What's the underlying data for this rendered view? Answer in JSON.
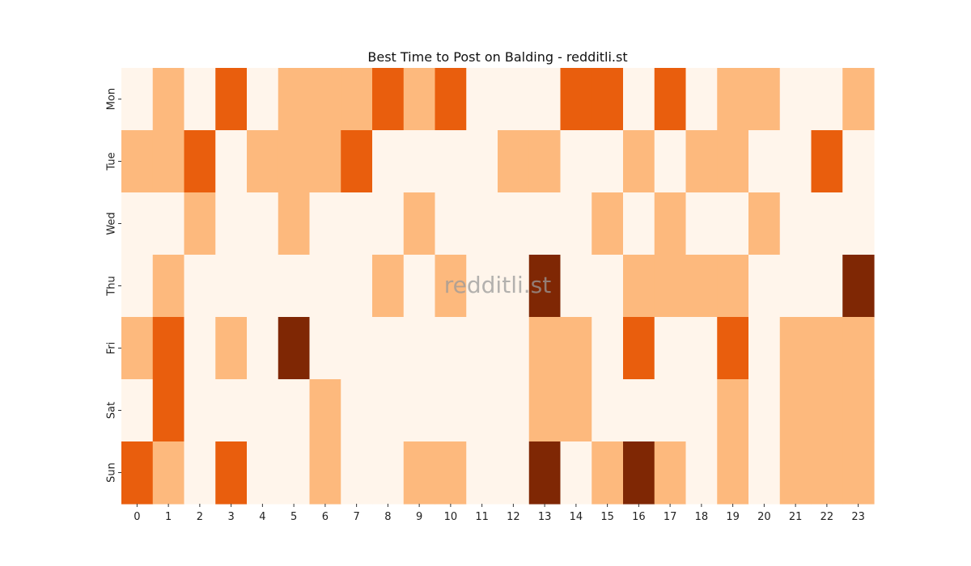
{
  "chart_data": {
    "type": "heatmap",
    "title": "Best Time to Post on Balding - redditli.st",
    "watermark": "redditli.st",
    "xlabel": "",
    "ylabel": "",
    "x_categories": [
      "0",
      "1",
      "2",
      "3",
      "4",
      "5",
      "6",
      "7",
      "8",
      "9",
      "10",
      "11",
      "12",
      "13",
      "14",
      "15",
      "16",
      "17",
      "18",
      "19",
      "20",
      "21",
      "22",
      "23"
    ],
    "y_categories": [
      "Mon",
      "Tue",
      "Wed",
      "Thu",
      "Fri",
      "Sat",
      "Sun"
    ],
    "levels": [
      [
        0,
        1,
        0,
        2,
        0,
        1,
        1,
        1,
        2,
        1,
        2,
        0,
        0,
        0,
        2,
        2,
        0,
        2,
        0,
        1,
        1,
        0,
        0,
        1
      ],
      [
        1,
        1,
        2,
        0,
        1,
        1,
        1,
        2,
        0,
        0,
        0,
        0,
        1,
        1,
        0,
        0,
        1,
        0,
        1,
        1,
        0,
        0,
        2,
        0
      ],
      [
        0,
        0,
        1,
        0,
        0,
        1,
        0,
        0,
        0,
        1,
        0,
        0,
        0,
        0,
        0,
        1,
        0,
        1,
        0,
        0,
        1,
        0,
        0,
        0
      ],
      [
        0,
        1,
        0,
        0,
        0,
        0,
        0,
        0,
        1,
        0,
        1,
        0,
        0,
        3,
        0,
        0,
        1,
        1,
        1,
        1,
        0,
        0,
        0,
        3
      ],
      [
        1,
        2,
        0,
        1,
        0,
        3,
        0,
        0,
        0,
        0,
        0,
        0,
        0,
        1,
        1,
        0,
        2,
        0,
        0,
        2,
        0,
        1,
        1,
        1
      ],
      [
        0,
        2,
        0,
        0,
        0,
        0,
        1,
        0,
        0,
        0,
        0,
        0,
        0,
        1,
        1,
        0,
        0,
        0,
        0,
        1,
        0,
        1,
        1,
        1
      ],
      [
        2,
        1,
        0,
        2,
        0,
        0,
        1,
        0,
        0,
        1,
        1,
        0,
        0,
        3,
        0,
        1,
        3,
        1,
        0,
        1,
        0,
        1,
        1,
        1
      ]
    ],
    "colors": [
      "#fff5eb",
      "#fdb97d",
      "#e95e0d",
      "#7f2704"
    ],
    "grid": false,
    "legend": "none"
  }
}
